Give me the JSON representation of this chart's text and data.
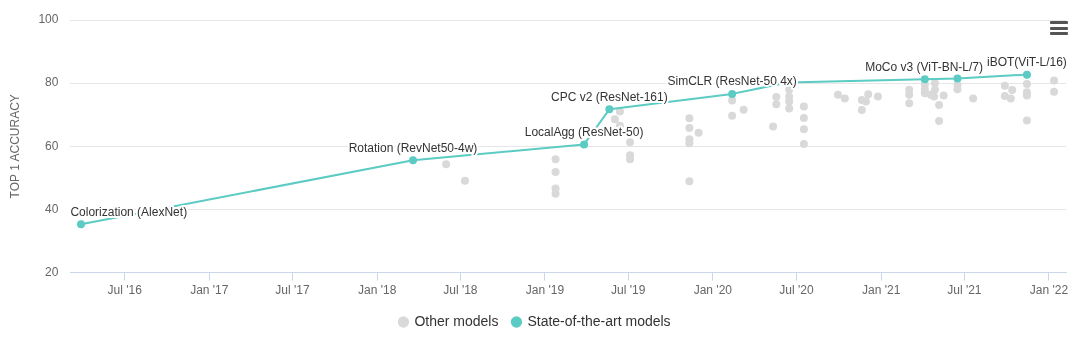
{
  "chart_data": {
    "type": "scatter",
    "ylabel": "TOP 1 ACCURACY",
    "xlim": [
      "2016-03-05",
      "2022-02-07"
    ],
    "xticks": [
      {
        "value": "2016-07-01",
        "label": "Jul '16"
      },
      {
        "value": "2017-01-01",
        "label": "Jan '17"
      },
      {
        "value": "2017-07-01",
        "label": "Jul '17"
      },
      {
        "value": "2018-01-01",
        "label": "Jan '18"
      },
      {
        "value": "2018-07-01",
        "label": "Jul '18"
      },
      {
        "value": "2019-01-01",
        "label": "Jan '19"
      },
      {
        "value": "2019-07-01",
        "label": "Jul '19"
      },
      {
        "value": "2020-01-01",
        "label": "Jan '20"
      },
      {
        "value": "2020-07-01",
        "label": "Jul '20"
      },
      {
        "value": "2021-01-01",
        "label": "Jan '21"
      },
      {
        "value": "2021-07-01",
        "label": "Jul '21"
      },
      {
        "value": "2022-01-01",
        "label": "Jan '22"
      }
    ],
    "ylim": [
      20,
      100
    ],
    "yticks": [
      20,
      40,
      60,
      80,
      100
    ],
    "grid": "y",
    "legend": "bottom",
    "marker": "circle",
    "series": [
      {
        "name": "Other models",
        "type": "scatter",
        "color": "#d9d9d9",
        "x": [
          "2018-05-31",
          "2018-07-11",
          "2019-01-24",
          "2019-01-24",
          "2019-01-24",
          "2019-01-24",
          "2019-06-02",
          "2019-06-13",
          "2019-06-13",
          "2019-07-05",
          "2019-07-05",
          "2019-07-05",
          "2019-11-11",
          "2019-11-11",
          "2019-11-11",
          "2019-11-11",
          "2019-11-11",
          "2019-12-01",
          "2020-02-12",
          "2020-02-12",
          "2020-03-08",
          "2020-05-11",
          "2020-05-18",
          "2020-05-18",
          "2020-06-15",
          "2020-06-15",
          "2020-06-15",
          "2020-06-15",
          "2020-07-17",
          "2020-07-17",
          "2020-07-17",
          "2020-07-17",
          "2020-09-29",
          "2020-10-14",
          "2020-11-20",
          "2020-11-20",
          "2020-11-29",
          "2020-12-04",
          "2020-12-25",
          "2021-03-03",
          "2021-03-03",
          "2021-03-03",
          "2021-04-06",
          "2021-04-06",
          "2021-04-06",
          "2021-04-19",
          "2021-04-26",
          "2021-04-28",
          "2021-04-28",
          "2021-05-07",
          "2021-05-07",
          "2021-05-17",
          "2021-06-16",
          "2021-06-16",
          "2021-07-20",
          "2021-09-27",
          "2021-09-27",
          "2021-10-10",
          "2021-10-13",
          "2021-11-14",
          "2021-11-14",
          "2021-11-14",
          "2021-11-14",
          "2022-01-12",
          "2022-01-12"
        ],
        "values": [
          54.3,
          49.1,
          55.9,
          51.9,
          46.6,
          45.0,
          68.6,
          71.0,
          66.5,
          61.3,
          57.2,
          55.9,
          68.9,
          65.8,
          62.2,
          61.0,
          48.9,
          64.3,
          74.5,
          69.7,
          71.6,
          66.3,
          75.6,
          73.3,
          77.9,
          75.7,
          74.2,
          72.0,
          72.6,
          69.0,
          65.4,
          60.7,
          76.3,
          75.1,
          71.5,
          74.7,
          74.2,
          76.5,
          75.8,
          77.9,
          76.3,
          73.6,
          79.5,
          77.9,
          76.8,
          76.3,
          75.8,
          80.0,
          77.9,
          73.1,
          68.0,
          76.1,
          79.5,
          78.1,
          75.1,
          79.2,
          75.9,
          75.1,
          77.8,
          79.7,
          77.1,
          76.1,
          68.2,
          80.8,
          77.3
        ]
      },
      {
        "name": "State-of-the-art models",
        "type": "line",
        "color": "#5ccbc3",
        "x": [
          "2016-03-28",
          "2018-03-20",
          "2019-03-27",
          "2019-05-21",
          "2020-02-12",
          "2020-06-12",
          "2021-04-06",
          "2021-06-16",
          "2021-11-14"
        ],
        "values": [
          35.3,
          55.6,
          60.6,
          71.7,
          76.6,
          80.2,
          81.2,
          81.5,
          82.7
        ]
      }
    ],
    "annotations": [
      {
        "text": "Colorization (AlexNet)",
        "x": "2016-03-28",
        "y": 35.3
      },
      {
        "text": "Rotation (RevNet50-4w)",
        "x": "2018-03-20",
        "y": 55.6
      },
      {
        "text": "LocalAgg (ResNet-50)",
        "x": "2019-03-27",
        "y": 60.6
      },
      {
        "text": "CPC v2 (ResNet-161)",
        "x": "2019-05-21",
        "y": 71.7
      },
      {
        "text": "SimCLR (ResNet-50 4x)",
        "x": "2020-02-12",
        "y": 76.6
      },
      {
        "text": "MoCo v3 (ViT-BN-L/7)",
        "x": "2021-04-06",
        "y": 81.2
      },
      {
        "text": "iBOT(ViT-L/16)",
        "x": "2021-11-14",
        "y": 82.7
      }
    ]
  }
}
